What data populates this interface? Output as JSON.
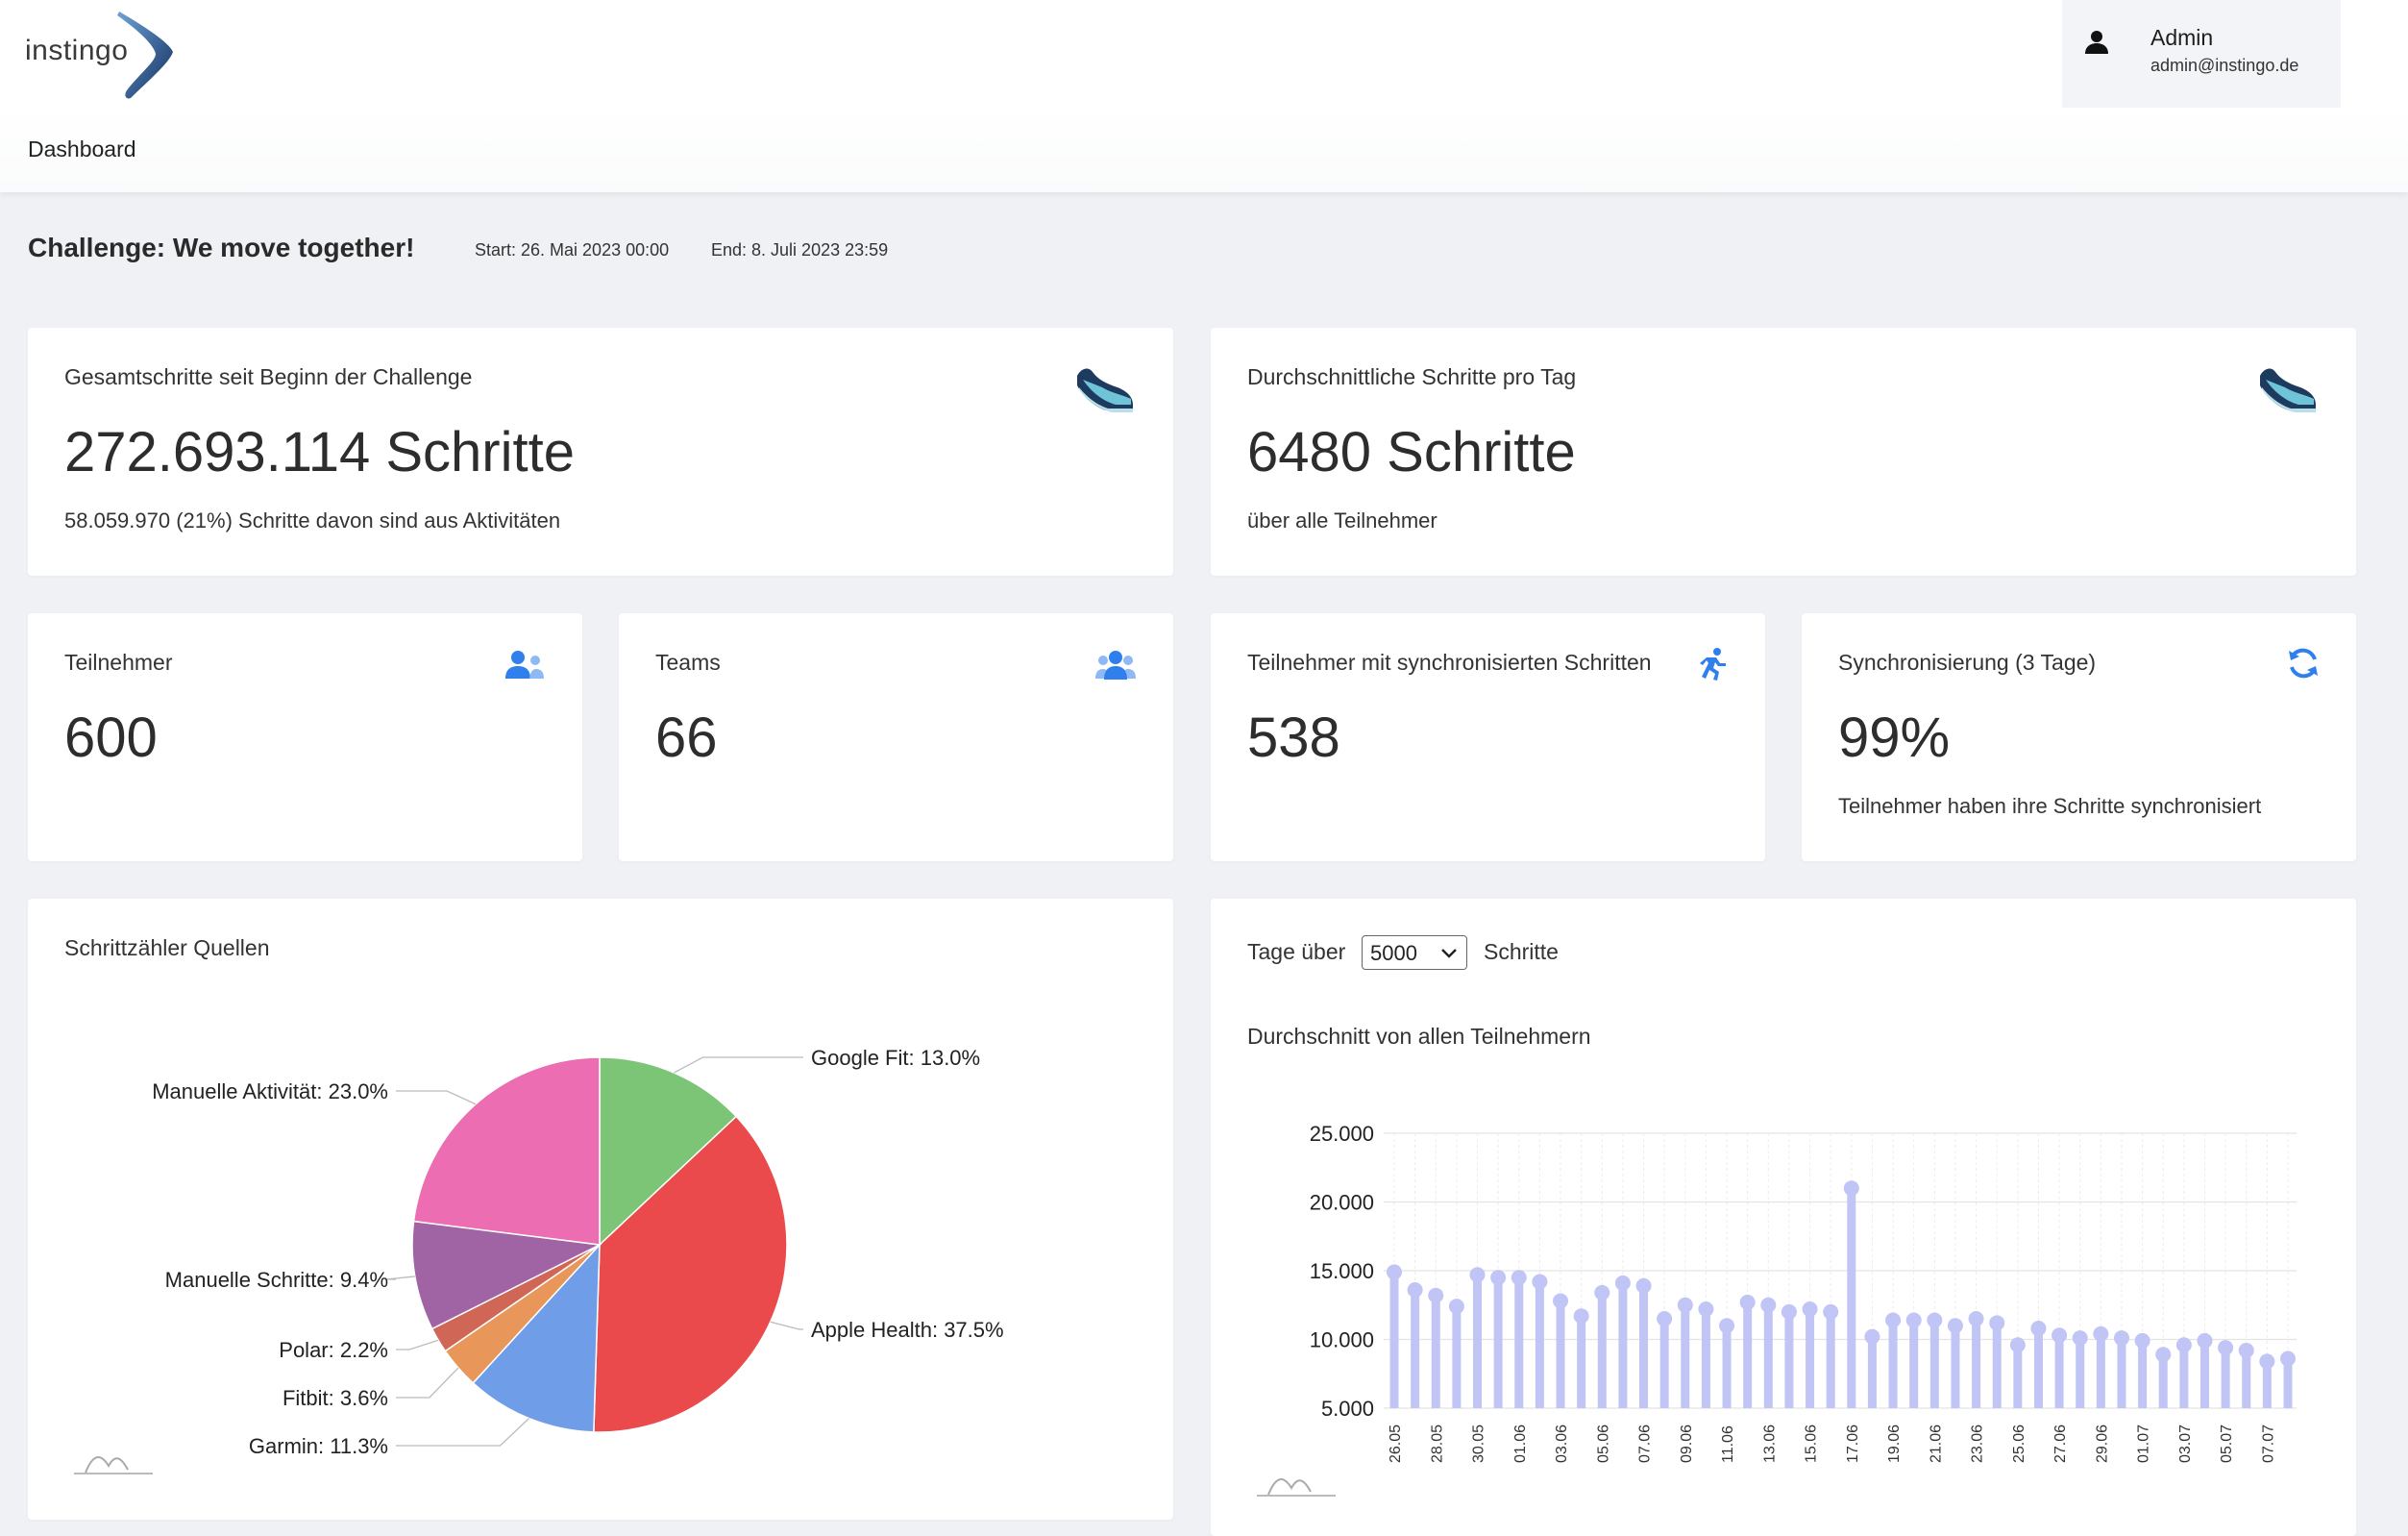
{
  "header": {
    "logo_text": "instingo",
    "user": {
      "name": "Admin",
      "email": "admin@instingo.de",
      "icon": "user-icon"
    }
  },
  "nav": {
    "dashboard_label": "Dashboard"
  },
  "challenge": {
    "title": "Challenge: We move together!",
    "start": "Start: 26. Mai 2023 00:00",
    "end": "End: 8. Juli 2023 23:59"
  },
  "stats": {
    "total_steps": {
      "title": "Gesamtschritte seit Beginn der Challenge",
      "value": "272.693.114 Schritte",
      "sub": "58.059.970 (21%) Schritte davon sind aus Aktivitäten",
      "icon": "sneaker-icon"
    },
    "avg_steps": {
      "title": "Durchschnittliche Schritte pro Tag",
      "value": "6480 Schritte",
      "sub": "über alle Teilnehmer",
      "icon": "sneaker-icon"
    },
    "participants": {
      "title": "Teilnehmer",
      "value": "600",
      "icon": "users-icon"
    },
    "teams": {
      "title": "Teams",
      "value": "66",
      "icon": "user-group-icon"
    },
    "synced_participants": {
      "title": "Teilnehmer mit synchronisierten Schritten",
      "value": "538",
      "icon": "running-icon"
    },
    "sync_rate": {
      "title": "Synchronisierung (3 Tage)",
      "value": "99%",
      "sub": "Teilnehmer haben ihre Schritte synchronisiert",
      "icon": "sync-icon"
    }
  },
  "pie_card": {
    "title": "Schrittzähler Quellen"
  },
  "bar_card": {
    "prefix": "Tage über",
    "select_value": "5000",
    "suffix": "Schritte",
    "subtitle": "Durchschnitt von allen Teilnehmern"
  },
  "colors": {
    "google_fit": "#7cc576",
    "apple_health": "#ea4a4c",
    "garmin": "#6f9de8",
    "fitbit": "#e8965a",
    "polar": "#cf6656",
    "manual_steps": "#a063a3",
    "manual_activity": "#ec6db1",
    "lollipop": "#c0c5f5",
    "icon_blue": "#2f80ed"
  },
  "chart_data": [
    {
      "type": "pie",
      "title": "Schrittzähler Quellen",
      "slices": [
        {
          "label": "Google Fit: 13.0%",
          "name": "Google Fit",
          "value": 13.0,
          "color": "#7cc576"
        },
        {
          "label": "Apple Health: 37.5%",
          "name": "Apple Health",
          "value": 37.5,
          "color": "#ea4a4c"
        },
        {
          "label": "Garmin: 11.3%",
          "name": "Garmin",
          "value": 11.3,
          "color": "#6f9de8"
        },
        {
          "label": "Fitbit: 3.6%",
          "name": "Fitbit",
          "value": 3.6,
          "color": "#e8965a"
        },
        {
          "label": "Polar: 2.2%",
          "name": "Polar",
          "value": 2.2,
          "color": "#cf6656"
        },
        {
          "label": "Manuelle Schritte: 9.4%",
          "name": "Manuelle Schritte",
          "value": 9.4,
          "color": "#a063a3"
        },
        {
          "label": "Manuelle Aktivität: 23.0%",
          "name": "Manuelle Aktivität",
          "value": 23.0,
          "color": "#ec6db1"
        }
      ]
    },
    {
      "type": "bar",
      "subtitle": "Durchschnitt von allen Teilnehmern",
      "ylim": [
        5000,
        25000
      ],
      "yticks": [
        "5.000",
        "10.000",
        "15.000",
        "20.000",
        "25.000"
      ],
      "ytick_values": [
        5000,
        10000,
        15000,
        20000,
        25000
      ],
      "x": [
        "26.05",
        "27.05",
        "28.05",
        "29.05",
        "30.05",
        "31.05",
        "01.06",
        "02.06",
        "03.06",
        "04.06",
        "05.06",
        "06.06",
        "07.06",
        "08.06",
        "09.06",
        "10.06",
        "11.06",
        "12.06",
        "13.06",
        "14.06",
        "15.06",
        "16.06",
        "17.06",
        "18.06",
        "19.06",
        "20.06",
        "21.06",
        "22.06",
        "23.06",
        "24.06",
        "25.06",
        "26.06",
        "27.06",
        "28.06",
        "29.06",
        "30.06",
        "01.07",
        "02.07",
        "03.07",
        "04.07",
        "05.07",
        "06.07",
        "07.07",
        "08.07"
      ],
      "xtick_labels": [
        "26.05",
        "",
        "28.05",
        "",
        "30.05",
        "",
        "01.06",
        "",
        "03.06",
        "",
        "05.06",
        "",
        "07.06",
        "",
        "09.06",
        "",
        "11.06",
        "",
        "13.06",
        "",
        "15.06",
        "",
        "17.06",
        "",
        "19.06",
        "",
        "21.06",
        "",
        "23.06",
        "",
        "25.06",
        "",
        "27.06",
        "",
        "29.06",
        "",
        "01.07",
        "",
        "03.07",
        "",
        "05.07",
        "",
        "07.07",
        ""
      ],
      "values": [
        14900,
        13600,
        13200,
        12400,
        14700,
        14500,
        14500,
        14200,
        12800,
        11700,
        13400,
        14100,
        13900,
        11500,
        12500,
        12200,
        11000,
        12700,
        12500,
        12000,
        12200,
        12000,
        21000,
        10200,
        11400,
        11400,
        11400,
        11000,
        11500,
        11200,
        9600,
        10800,
        10300,
        10100,
        10400,
        10100,
        9900,
        8900,
        9600,
        9900,
        9400,
        9200,
        8400,
        8600
      ]
    }
  ]
}
